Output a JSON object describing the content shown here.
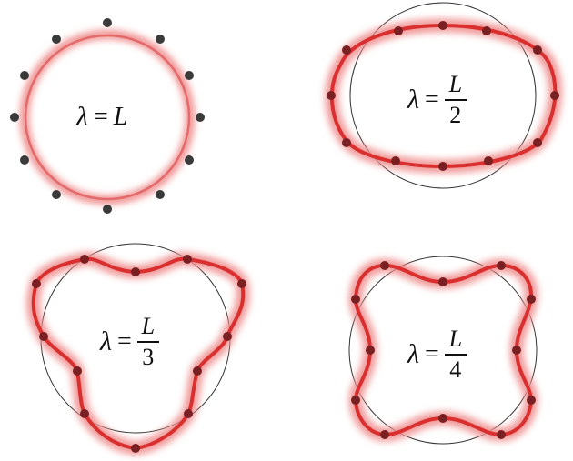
{
  "diagram": {
    "panels": [
      {
        "id": "p1",
        "label": {
          "symbol": "λ",
          "equals": "=",
          "numerator": "L",
          "denominator": ""
        },
        "mode": 1
      },
      {
        "id": "p2",
        "label": {
          "symbol": "λ",
          "equals": "=",
          "numerator": "L",
          "denominator": "2"
        },
        "mode": 2
      },
      {
        "id": "p3",
        "label": {
          "symbol": "λ",
          "equals": "=",
          "numerator": "L",
          "denominator": "3"
        },
        "mode": 3
      },
      {
        "id": "p4",
        "label": {
          "symbol": "λ",
          "equals": "=",
          "numerator": "L",
          "denominator": "4"
        },
        "mode": 4
      }
    ],
    "colors": {
      "wave": "#d9302f",
      "glow": "#ef8e8e",
      "reference_circle": "#333333",
      "atom_dark": "#3a3a3a",
      "atom_on_wave": "#7a1f22"
    }
  }
}
